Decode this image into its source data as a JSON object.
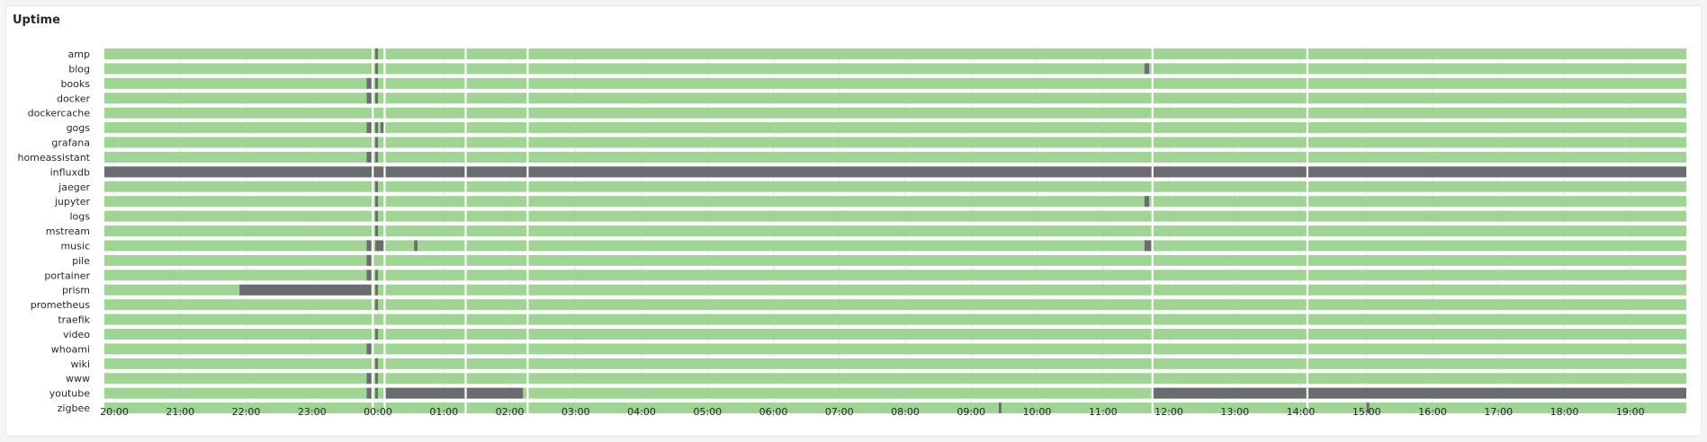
{
  "panel": {
    "title": "Uptime"
  },
  "colors": {
    "up": "#a0d494",
    "down": "#6b6c70",
    "grid": "#e7e9ea",
    "bg": "#ffffff",
    "text": "#24292e"
  },
  "chart_data": {
    "type": "state-timeline",
    "title": "Uptime",
    "x_range_hours": [
      19.85,
      43.85
    ],
    "ticks": [
      "20:00",
      "21:00",
      "22:00",
      "23:00",
      "00:00",
      "01:00",
      "02:00",
      "03:00",
      "04:00",
      "05:00",
      "06:00",
      "07:00",
      "08:00",
      "09:00",
      "10:00",
      "11:00",
      "12:00",
      "13:00",
      "14:00",
      "15:00",
      "16:00",
      "17:00",
      "18:00",
      "19:00"
    ],
    "tick_hours": [
      20,
      21,
      22,
      23,
      24,
      25,
      26,
      27,
      28,
      29,
      30,
      31,
      32,
      33,
      34,
      35,
      36,
      37,
      38,
      39,
      40,
      41,
      42,
      43
    ],
    "gaps_hours": [
      23.92,
      24.1,
      25.33,
      26.27,
      35.75,
      38.1
    ],
    "rows": [
      {
        "name": "amp",
        "down": [
          [
            23.96,
            24.0
          ]
        ]
      },
      {
        "name": "blog",
        "down": [
          [
            23.96,
            24.0
          ],
          [
            35.63,
            35.7
          ]
        ]
      },
      {
        "name": "books",
        "down": [
          [
            23.83,
            23.9
          ],
          [
            23.96,
            24.0
          ]
        ]
      },
      {
        "name": "docker",
        "down": [
          [
            23.83,
            23.9
          ],
          [
            23.96,
            24.0
          ]
        ]
      },
      {
        "name": "dockercache",
        "down": []
      },
      {
        "name": "gogs",
        "down": [
          [
            23.83,
            23.9
          ],
          [
            23.96,
            24.0
          ],
          [
            24.04,
            24.12
          ]
        ]
      },
      {
        "name": "grafana",
        "down": [
          [
            23.96,
            24.0
          ]
        ]
      },
      {
        "name": "homeassistant",
        "down": [
          [
            23.83,
            23.9
          ],
          [
            23.96,
            24.0
          ]
        ]
      },
      {
        "name": "influxdb",
        "down": [
          [
            19.85,
            43.85
          ]
        ]
      },
      {
        "name": "jaeger",
        "down": [
          [
            23.96,
            24.0
          ]
        ]
      },
      {
        "name": "jupyter",
        "down": [
          [
            23.96,
            24.0
          ],
          [
            35.63,
            35.7
          ]
        ]
      },
      {
        "name": "logs",
        "down": [
          [
            23.96,
            24.0
          ]
        ]
      },
      {
        "name": "mstream",
        "down": [
          [
            23.96,
            24.0
          ]
        ]
      },
      {
        "name": "music",
        "down": [
          [
            23.83,
            23.9
          ],
          [
            23.96,
            24.12
          ],
          [
            24.55,
            24.6
          ],
          [
            35.63,
            35.73
          ]
        ]
      },
      {
        "name": "pile",
        "down": [
          [
            23.83,
            23.9
          ]
        ]
      },
      {
        "name": "portainer",
        "down": [
          [
            23.83,
            23.9
          ],
          [
            23.96,
            24.0
          ]
        ]
      },
      {
        "name": "prism",
        "down": [
          [
            21.9,
            23.9
          ],
          [
            23.96,
            24.0
          ]
        ]
      },
      {
        "name": "prometheus",
        "down": [
          [
            23.96,
            24.0
          ]
        ]
      },
      {
        "name": "traefik",
        "down": []
      },
      {
        "name": "video",
        "down": [
          [
            23.96,
            24.0
          ]
        ]
      },
      {
        "name": "whoami",
        "down": [
          [
            23.83,
            23.9
          ]
        ]
      },
      {
        "name": "wiki",
        "down": [
          [
            23.96,
            24.0
          ]
        ]
      },
      {
        "name": "www",
        "down": [
          [
            23.83,
            23.9
          ],
          [
            23.96,
            24.0
          ]
        ]
      },
      {
        "name": "youtube",
        "down": [
          [
            23.83,
            23.9
          ],
          [
            23.96,
            24.0
          ],
          [
            24.12,
            26.2
          ],
          [
            35.75,
            43.85
          ]
        ]
      },
      {
        "name": "zigbee",
        "down": [
          [
            33.42,
            33.46
          ],
          [
            39.0,
            39.04
          ]
        ]
      }
    ]
  }
}
